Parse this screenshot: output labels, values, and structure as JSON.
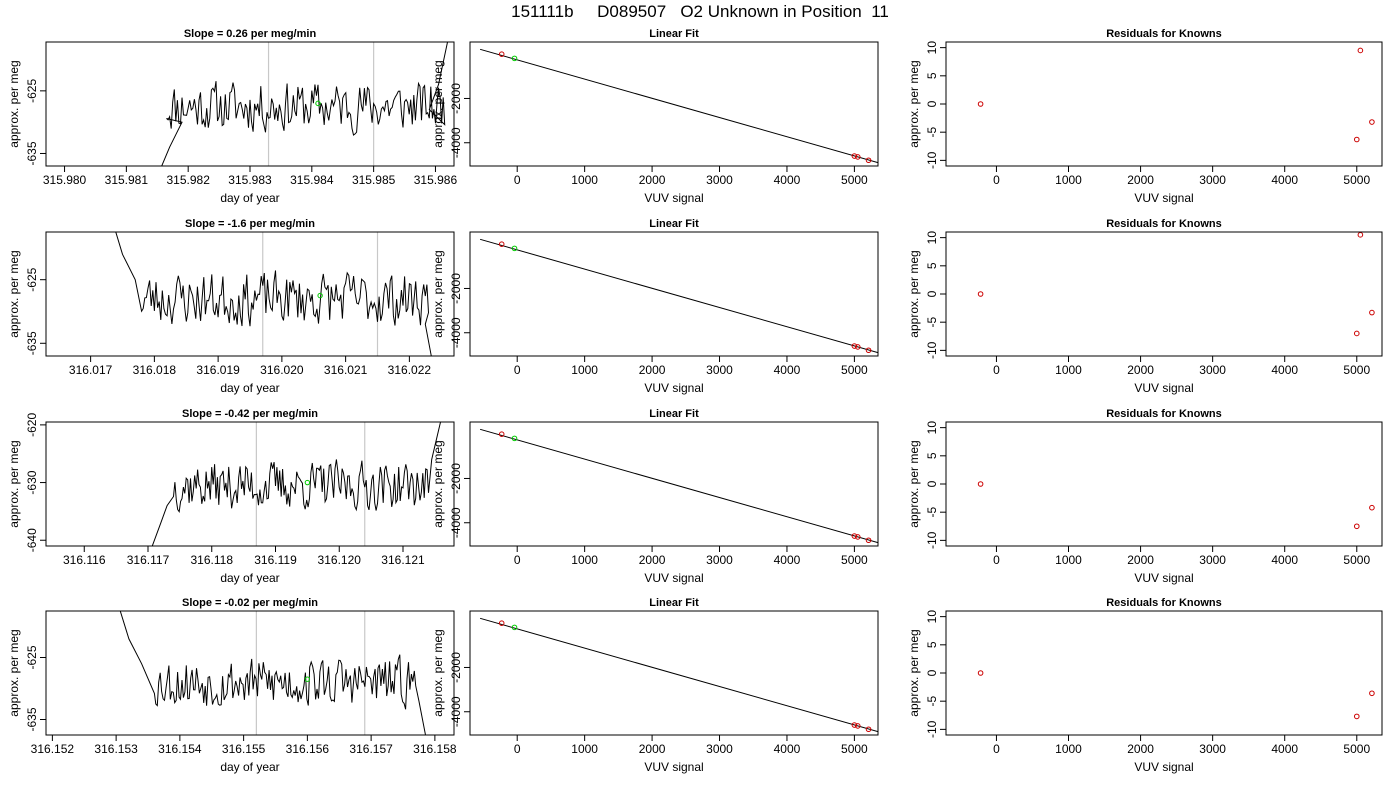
{
  "page": {
    "title": "151111b     D089507   O2 Unknown in Position  11"
  },
  "colors": {
    "trace": "#000000",
    "window_line": "#c8c8c8",
    "known_point": "#cc0000",
    "unknown_point": "#00cc00",
    "frame": "#000000"
  },
  "chart_data": [
    {
      "type": "line",
      "title": "Slope =  0.26  per meg/min",
      "xlabel": "day of year",
      "ylabel": "approx. per meg",
      "xlim": [
        315.9797,
        315.9863
      ],
      "ylim": [
        -637,
        -617.2
      ],
      "xticks": [
        315.98,
        315.981,
        315.982,
        315.983,
        315.984,
        315.985,
        315.986
      ],
      "xdec": 3,
      "yticks": [
        -625,
        -635
      ],
      "window_lines": [
        315.9833,
        315.985
      ],
      "unknown_point": {
        "x": 315.9841,
        "y": -627
      },
      "trace": {
        "start": 315.98165,
        "end": 315.98615,
        "base": -627.5,
        "noise": 2.3,
        "seed": 11,
        "head": [
          [
            315.98155,
            -637.5
          ],
          [
            315.9817,
            -634
          ],
          [
            315.9818,
            -632
          ],
          [
            315.9819,
            -630
          ]
        ],
        "tail": [
          [
            315.9859,
            -628
          ],
          [
            315.98605,
            -624
          ],
          [
            315.9862,
            -617
          ]
        ]
      },
      "grid": false,
      "legend": "none"
    },
    {
      "type": "scatter",
      "title": "Linear Fit",
      "xlabel": "VUV signal",
      "ylabel": "approx. per meg",
      "xlim": [
        -700,
        5350
      ],
      "ylim": [
        -5050,
        550
      ],
      "xticks": [
        0,
        1000,
        2000,
        3000,
        4000,
        5000
      ],
      "yticks": [
        -2000,
        -4000
      ],
      "fit_line": {
        "x": [
          -550,
          5350
        ],
        "y": [
          220,
          -4900
        ]
      },
      "known_points": [
        {
          "x": -230,
          "y": 0
        },
        {
          "x": 5000,
          "y": -4600
        },
        {
          "x": 5050,
          "y": -4640
        },
        {
          "x": 5210,
          "y": -4790
        }
      ],
      "unknown_points": [
        {
          "x": -40,
          "y": -190
        }
      ],
      "grid": false,
      "legend": "none"
    },
    {
      "type": "scatter",
      "title": "Residuals for Knowns",
      "xlabel": "VUV signal",
      "ylabel": "approx. per meg",
      "xlim": [
        -700,
        5350
      ],
      "ylim": [
        -11,
        11
      ],
      "xticks": [
        0,
        1000,
        2000,
        3000,
        4000,
        5000
      ],
      "yticks": [
        10,
        5,
        0,
        -5,
        -10
      ],
      "known_points": [
        {
          "x": -220,
          "y": 0
        },
        {
          "x": 5050,
          "y": 9.5
        },
        {
          "x": 5000,
          "y": -6.3
        },
        {
          "x": 5210,
          "y": -3.2
        }
      ],
      "grid": false,
      "legend": "none"
    },
    {
      "type": "line",
      "title": "Slope =  -1.6  per meg/min",
      "xlabel": "day of year",
      "ylabel": "approx. per meg",
      "xlim": [
        316.0163,
        316.0227
      ],
      "ylim": [
        -637,
        -617.5
      ],
      "xticks": [
        316.017,
        316.018,
        316.019,
        316.02,
        316.021,
        316.022
      ],
      "xdec": 3,
      "yticks": [
        -625,
        -635
      ],
      "window_lines": [
        316.0197,
        316.0215
      ],
      "unknown_point": {
        "x": 316.0206,
        "y": -627.5
      },
      "trace": {
        "start": 316.0178,
        "end": 316.0223,
        "base": -628,
        "noise": 2.4,
        "seed": 23,
        "head": [
          [
            316.01735,
            -616
          ],
          [
            316.0175,
            -621
          ],
          [
            316.0177,
            -625
          ]
        ],
        "tail": [
          [
            316.02225,
            -632
          ],
          [
            316.0224,
            -640
          ]
        ]
      },
      "grid": false,
      "legend": "none"
    },
    {
      "type": "scatter",
      "title": "Linear Fit",
      "xlabel": "VUV signal",
      "ylabel": "approx. per meg",
      "xlim": [
        -700,
        5350
      ],
      "ylim": [
        -5050,
        550
      ],
      "xticks": [
        0,
        1000,
        2000,
        3000,
        4000,
        5000
      ],
      "yticks": [
        -2000,
        -4000
      ],
      "fit_line": {
        "x": [
          -550,
          5350
        ],
        "y": [
          220,
          -4900
        ]
      },
      "known_points": [
        {
          "x": -230,
          "y": 0
        },
        {
          "x": 5000,
          "y": -4600
        },
        {
          "x": 5050,
          "y": -4640
        },
        {
          "x": 5210,
          "y": -4790
        }
      ],
      "unknown_points": [
        {
          "x": -40,
          "y": -190
        }
      ],
      "grid": false,
      "legend": "none"
    },
    {
      "type": "scatter",
      "title": "Residuals for Knowns",
      "xlabel": "VUV signal",
      "ylabel": "approx. per meg",
      "xlim": [
        -700,
        5350
      ],
      "ylim": [
        -11,
        11
      ],
      "xticks": [
        0,
        1000,
        2000,
        3000,
        4000,
        5000
      ],
      "yticks": [
        10,
        5,
        0,
        -5,
        -10
      ],
      "known_points": [
        {
          "x": -220,
          "y": 0
        },
        {
          "x": 5050,
          "y": 10.5
        },
        {
          "x": 5000,
          "y": -7
        },
        {
          "x": 5210,
          "y": -3.3
        }
      ],
      "grid": false,
      "legend": "none"
    },
    {
      "type": "line",
      "title": "Slope =  -0.42  per meg/min",
      "xlabel": "day of year",
      "ylabel": "approx. per meg",
      "xlim": [
        316.1154,
        316.1218
      ],
      "ylim": [
        -641,
        -619.5
      ],
      "xticks": [
        316.116,
        316.117,
        316.118,
        316.119,
        316.12,
        316.121
      ],
      "xdec": 3,
      "yticks": [
        -620,
        -630,
        -640
      ],
      "window_lines": [
        316.1187,
        316.1204
      ],
      "unknown_point": {
        "x": 316.1195,
        "y": -630
      },
      "trace": {
        "start": 316.1174,
        "end": 316.1214,
        "base": -630.5,
        "noise": 2.4,
        "seed": 37,
        "head": [
          [
            316.11705,
            -641.5
          ],
          [
            316.1172,
            -637
          ],
          [
            316.1173,
            -634
          ]
        ],
        "tail": [
          [
            316.12145,
            -626
          ],
          [
            316.1216,
            -619
          ]
        ]
      },
      "grid": false,
      "legend": "none"
    },
    {
      "type": "scatter",
      "title": "Linear Fit",
      "xlabel": "VUV signal",
      "ylabel": "approx. per meg",
      "xlim": [
        -700,
        5350
      ],
      "ylim": [
        -5050,
        550
      ],
      "xticks": [
        0,
        1000,
        2000,
        3000,
        4000,
        5000
      ],
      "yticks": [
        -2000,
        -4000
      ],
      "fit_line": {
        "x": [
          -550,
          5350
        ],
        "y": [
          220,
          -4900
        ]
      },
      "known_points": [
        {
          "x": -230,
          "y": 0
        },
        {
          "x": 5000,
          "y": -4600
        },
        {
          "x": 5050,
          "y": -4640
        },
        {
          "x": 5210,
          "y": -4790
        }
      ],
      "unknown_points": [
        {
          "x": -40,
          "y": -190
        }
      ],
      "grid": false,
      "legend": "none"
    },
    {
      "type": "scatter",
      "title": "Residuals for Knowns",
      "xlabel": "VUV signal",
      "ylabel": "approx. per meg",
      "xlim": [
        -700,
        5350
      ],
      "ylim": [
        -11,
        11
      ],
      "xticks": [
        0,
        1000,
        2000,
        3000,
        4000,
        5000
      ],
      "yticks": [
        10,
        5,
        0,
        -5,
        -10
      ],
      "known_points": [
        {
          "x": -220,
          "y": 0
        },
        {
          "x": 5000,
          "y": -7.5
        },
        {
          "x": 5210,
          "y": -4.2
        }
      ],
      "grid": false,
      "legend": "none"
    },
    {
      "type": "line",
      "title": "Slope =  -0.02  per meg/min",
      "xlabel": "day of year",
      "ylabel": "approx. per meg",
      "xlim": [
        316.1519,
        316.1583
      ],
      "ylim": [
        -637.5,
        -617.5
      ],
      "xticks": [
        316.152,
        316.153,
        316.154,
        316.155,
        316.156,
        316.157,
        316.158
      ],
      "xdec": 3,
      "yticks": [
        -625,
        -635
      ],
      "window_lines": [
        316.1552,
        316.1569
      ],
      "unknown_point": {
        "x": 316.156,
        "y": -628.5
      },
      "trace": {
        "start": 316.1536,
        "end": 316.1577,
        "base": -629,
        "noise": 2.3,
        "seed": 53,
        "head": [
          [
            316.15305,
            -617
          ],
          [
            316.1532,
            -622
          ],
          [
            316.1534,
            -626
          ]
        ],
        "tail": [
          [
            316.15775,
            -632
          ],
          [
            316.1579,
            -640
          ]
        ]
      },
      "grid": false,
      "legend": "none"
    },
    {
      "type": "scatter",
      "title": "Linear Fit",
      "xlabel": "VUV signal",
      "ylabel": "approx. per meg",
      "xlim": [
        -700,
        5350
      ],
      "ylim": [
        -5050,
        550
      ],
      "xticks": [
        0,
        1000,
        2000,
        3000,
        4000,
        5000
      ],
      "yticks": [
        -2000,
        -4000
      ],
      "fit_line": {
        "x": [
          -550,
          5350
        ],
        "y": [
          220,
          -4900
        ]
      },
      "known_points": [
        {
          "x": -230,
          "y": 0
        },
        {
          "x": 5000,
          "y": -4600
        },
        {
          "x": 5050,
          "y": -4640
        },
        {
          "x": 5210,
          "y": -4790
        }
      ],
      "unknown_points": [
        {
          "x": -40,
          "y": -190
        }
      ],
      "grid": false,
      "legend": "none"
    },
    {
      "type": "scatter",
      "title": "Residuals for Knowns",
      "xlabel": "VUV signal",
      "ylabel": "approx. per meg",
      "xlim": [
        -700,
        5350
      ],
      "ylim": [
        -11,
        11
      ],
      "xticks": [
        0,
        1000,
        2000,
        3000,
        4000,
        5000
      ],
      "yticks": [
        10,
        5,
        0,
        -5,
        -10
      ],
      "known_points": [
        {
          "x": -220,
          "y": 0
        },
        {
          "x": 5000,
          "y": -7.7
        },
        {
          "x": 5210,
          "y": -3.6
        }
      ],
      "grid": false,
      "legend": "none"
    }
  ]
}
